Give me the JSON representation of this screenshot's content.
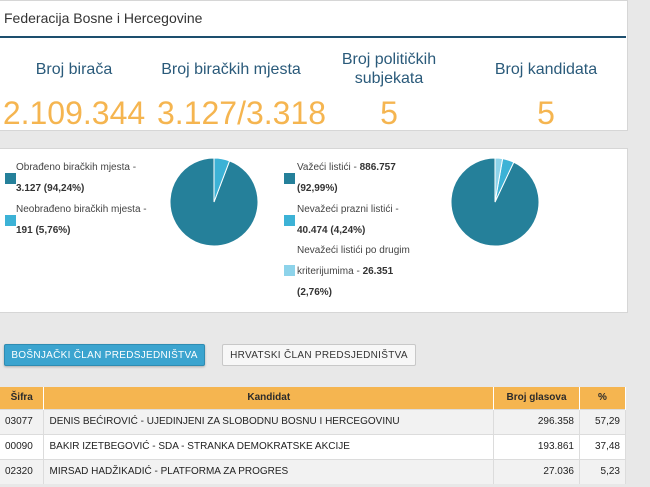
{
  "region_title": "Federacija Bosne i Hercegovine",
  "stats": [
    {
      "label": "Broj birača",
      "value": "2.109.344"
    },
    {
      "label": "Broj biračkih mjesta",
      "value": "3.127/3.318"
    },
    {
      "label": "Broj političkih subjekata",
      "value": "5"
    },
    {
      "label": "Broj kandidata",
      "value": "5"
    }
  ],
  "polling_chart": {
    "legend": [
      {
        "label": "Obrađeno biračkih mjesta",
        "value": "3.127 (94,24%)",
        "color": "#25809a"
      },
      {
        "label": "Neobrađeno biračkih mjesta",
        "value": "191 (5,76%)",
        "color": "#3cb2d6"
      }
    ],
    "chart_data": {
      "type": "pie",
      "values": [
        94.24,
        5.76
      ],
      "colors": [
        "#25809a",
        "#3cb2d6"
      ]
    }
  },
  "ballots_chart": {
    "legend": [
      {
        "label": "Važeći listići",
        "value": "886.757 (92,99%)",
        "color": "#25809a"
      },
      {
        "label": "Nevažeći prazni listići",
        "value": "40.474 (4,24%)",
        "color": "#3cb2d6"
      },
      {
        "label_line1": "Nevažeći listići po drugim",
        "label_line2": "kriterijumima",
        "value": "26.351",
        "value_line2": "(2,76%)",
        "color": "#8dd3ea"
      }
    ],
    "chart_data": {
      "type": "pie",
      "values": [
        92.99,
        4.24,
        2.76
      ],
      "colors": [
        "#25809a",
        "#3cb2d6",
        "#8dd3ea"
      ]
    }
  },
  "tabs": {
    "active": "BOŠNJAČKI ČLAN PREDSJEDNIŠTVA",
    "inactive": "HRVATSKI ČLAN PREDSJEDNIŠTVA"
  },
  "table": {
    "headers": {
      "code": "Šifra",
      "candidate": "Kandidat",
      "votes": "Broj glasova",
      "pct": "%"
    },
    "rows": [
      {
        "code": "03077",
        "candidate": "DENIS BEĆIROVIĆ - UJEDINJENI ZA SLOBODNU BOSNU I HERCEGOVINU",
        "votes": "296.358",
        "pct": "57,29"
      },
      {
        "code": "00090",
        "candidate": "BAKIR IZETBEGOVIĆ - SDA - STRANKA DEMOKRATSKE AKCIJE",
        "votes": "193.861",
        "pct": "37,48"
      },
      {
        "code": "02320",
        "candidate": "MIRSAD HADŽIKADIĆ - PLATFORMA ZA PROGRES",
        "votes": "27.036",
        "pct": "5,23"
      }
    ]
  }
}
